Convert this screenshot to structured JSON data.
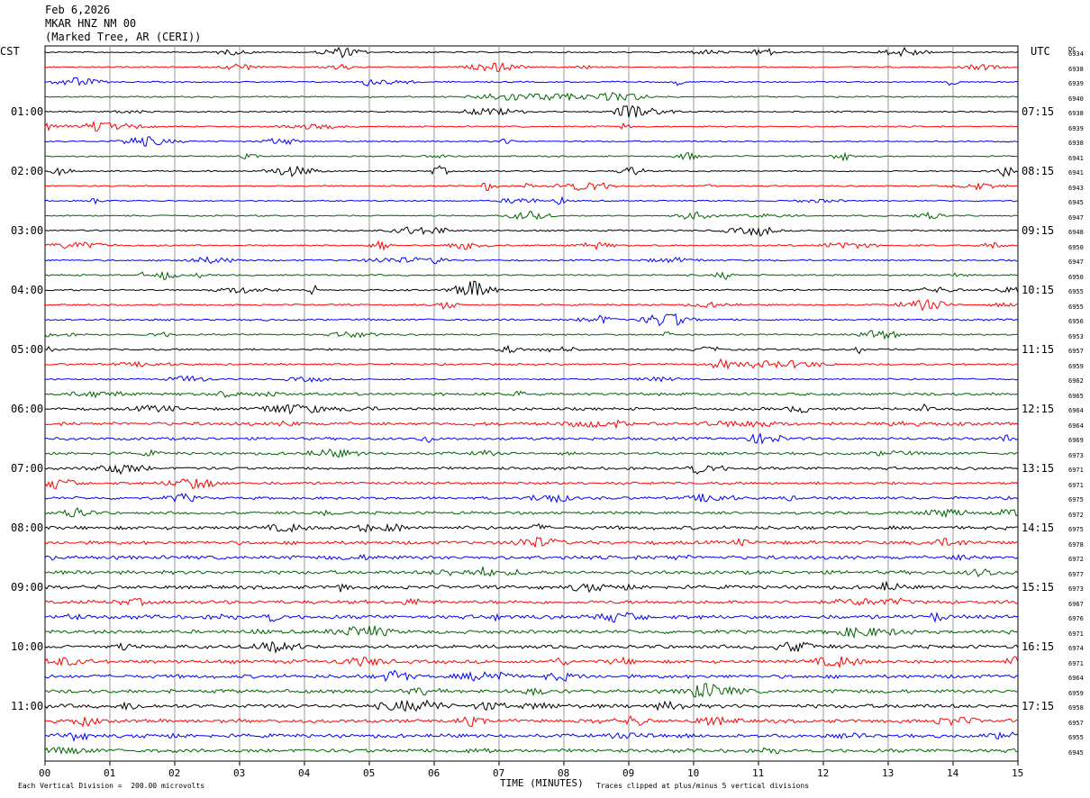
{
  "header": {
    "date": "Feb 6,2026",
    "station": "MKAR HNZ NM 00",
    "location": "(Marked Tree, AR (CERI))"
  },
  "left_timezone": "CST",
  "right_timezone": "UTC",
  "dc_header": "DC",
  "footer": {
    "scale_note": "Each Vertical Division =  200.00 microvolts",
    "xlabel": "TIME (MINUTES)",
    "clip_note": "Traces clipped at plus/minus 5 vertical divisions"
  },
  "chart_data": {
    "type": "line",
    "title": "",
    "xlabel": "TIME (MINUTES)",
    "ylabel": "",
    "xlim": [
      0,
      15
    ],
    "x_ticks": [
      "00",
      "01",
      "02",
      "03",
      "04",
      "05",
      "06",
      "07",
      "08",
      "09",
      "10",
      "11",
      "12",
      "13",
      "14",
      "15"
    ],
    "grid": true,
    "trace_colors": [
      "#000000",
      "#ff0000",
      "#0000ff",
      "#006400"
    ],
    "left_hour_labels": [
      "01:00",
      "02:00",
      "03:00",
      "04:00",
      "05:00",
      "06:00",
      "07:00",
      "08:00",
      "09:00",
      "10:00",
      "11:00"
    ],
    "right_hour_labels": [
      "07:15",
      "08:15",
      "09:15",
      "10:15",
      "11:15",
      "12:15",
      "13:15",
      "14:15",
      "15:15",
      "16:15",
      "17:15"
    ],
    "dc_offsets": [
      6934,
      6938,
      6939,
      6940,
      6938,
      6939,
      6938,
      6941,
      6941,
      6943,
      6945,
      6947,
      6948,
      6950,
      6947,
      6950,
      6955,
      6955,
      6956,
      6953,
      6957,
      6959,
      6962,
      6965,
      6964,
      6964,
      6969,
      6973,
      6971,
      6971,
      6975,
      6972,
      6975,
      6978,
      6972,
      6977,
      6973,
      6967,
      6976,
      6971,
      6974,
      6971,
      6964,
      6959,
      6958,
      6957,
      6955,
      6945
    ],
    "activity_levels": [
      0.5,
      0.5,
      0.5,
      0.5,
      0.5,
      0.5,
      0.5,
      0.5,
      0.5,
      0.5,
      0.5,
      0.5,
      0.6,
      0.6,
      0.6,
      0.6,
      0.6,
      0.6,
      0.7,
      0.6,
      0.7,
      0.7,
      0.6,
      1.0,
      1.0,
      1.2,
      1.0,
      1.0,
      1.0,
      1.0,
      1.0,
      1.0,
      1.3,
      1.3,
      1.3,
      1.3,
      1.3,
      1.3,
      1.4,
      1.3,
      1.3,
      1.3,
      1.3,
      1.3,
      1.4,
      1.3,
      1.3,
      1.3
    ]
  }
}
